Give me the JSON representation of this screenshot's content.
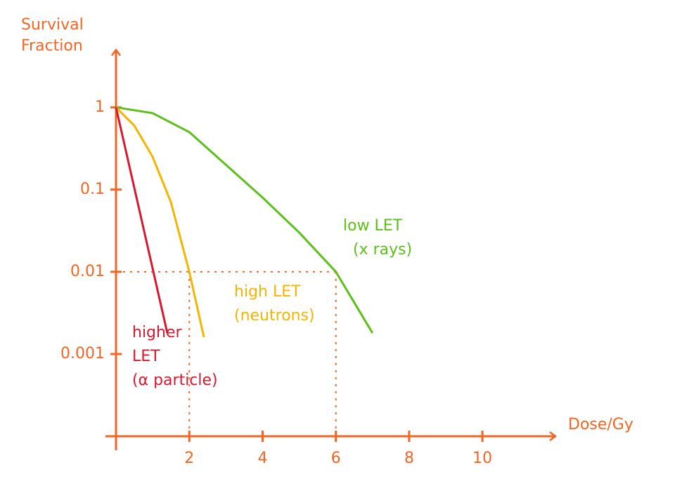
{
  "chart_data": {
    "type": "line",
    "y_label": [
      "Survival",
      "Fraction"
    ],
    "x_label": "Dose/Gy",
    "axis_color": "#f26522",
    "log_y": true,
    "xlim": [
      0,
      11.8
    ],
    "ylim": [
      0.0001,
      5
    ],
    "xticks": [
      2,
      4,
      6,
      8,
      10
    ],
    "yticks": [
      1,
      0.1,
      0.01,
      0.001
    ],
    "reference": {
      "y": 0.01,
      "x": [
        2,
        6
      ]
    },
    "series": [
      {
        "label": [
          "low LET",
          "(x rays)"
        ],
        "color": "#5cbf1a",
        "x": [
          0,
          1,
          2,
          3,
          4,
          5,
          6,
          7
        ],
        "values": [
          1,
          0.85,
          0.5,
          0.2,
          0.08,
          0.03,
          0.01,
          0.0018
        ]
      },
      {
        "label": [
          "high LET",
          "(neutrons)"
        ],
        "color": "#f5b400",
        "x": [
          0,
          0.5,
          1,
          1.5,
          2,
          2.4
        ],
        "values": [
          1,
          0.6,
          0.25,
          0.07,
          0.01,
          0.0016
        ]
      },
      {
        "label": [
          "higher",
          "LET",
          "(α particle)"
        ],
        "color": "#d7192f",
        "x": [
          0,
          1.4
        ],
        "values": [
          1,
          0.0018
        ]
      }
    ]
  }
}
